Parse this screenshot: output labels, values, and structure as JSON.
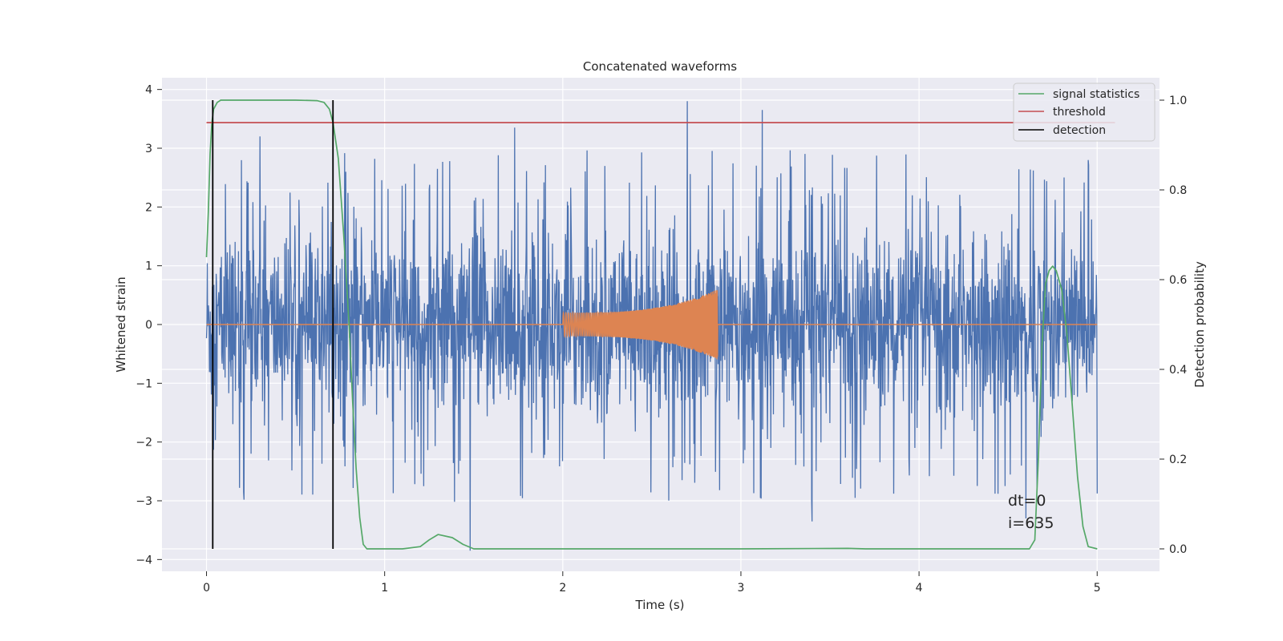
{
  "chart_data": {
    "type": "line",
    "title": "Concatenated waveforms",
    "xlabel": "Time (s)",
    "ylabel": "Whitened strain",
    "y2label": "Detection probability",
    "xlim": [
      -0.25,
      5.35
    ],
    "ylim": [
      -4.2,
      4.2
    ],
    "y2lim": [
      -0.05,
      1.05
    ],
    "xticks": [
      0,
      1,
      2,
      3,
      4,
      5
    ],
    "yticks": [
      -4,
      -3,
      -2,
      -1,
      0,
      1,
      2,
      3,
      4
    ],
    "y2ticks": [
      0.0,
      0.2,
      0.4,
      0.6,
      0.8,
      1.0
    ],
    "xtick_labels": [
      "0",
      "1",
      "2",
      "3",
      "4",
      "5"
    ],
    "ytick_labels": [
      "−4",
      "−3",
      "−2",
      "−1",
      "0",
      "1",
      "2",
      "3",
      "4"
    ],
    "y2tick_labels": [
      "0.0",
      "0.2",
      "0.4",
      "0.6",
      "0.8",
      "1.0"
    ],
    "grid": true,
    "legend_position": "top-right",
    "legend": [
      {
        "label": "signal statistics",
        "color": "#55a868"
      },
      {
        "label": "threshold",
        "color": "#c44e52"
      },
      {
        "label": "detection",
        "color": "#000000"
      }
    ],
    "series": [
      {
        "kind": "noise",
        "color": "#4c72b0",
        "axis": "left",
        "x_range": [
          0,
          5
        ],
        "envelope": [
          -2.3,
          2.3
        ],
        "peaks": [
          {
            "x": 2.7,
            "y": 3.8
          },
          {
            "x": 3.12,
            "y": 3.65
          },
          {
            "x": 1.48,
            "y": -3.85
          },
          {
            "x": 3.4,
            "y": -3.35
          },
          {
            "x": 0.3,
            "y": 3.2
          },
          {
            "x": 1.73,
            "y": 3.35
          },
          {
            "x": 4.6,
            "y": -3.3
          },
          {
            "x": 4.95,
            "y": 2.8
          }
        ]
      },
      {
        "kind": "chirp",
        "color": "#dd8452",
        "axis": "left",
        "x_range": [
          2.0,
          2.87
        ],
        "amplitude_start": 0.2,
        "amplitude_end": 0.6
      },
      {
        "name": "signal statistics",
        "color": "#55a868",
        "axis": "right",
        "x": [
          0.0,
          0.01,
          0.02,
          0.03,
          0.04,
          0.06,
          0.08,
          0.12,
          0.3,
          0.5,
          0.62,
          0.66,
          0.69,
          0.71,
          0.74,
          0.77,
          0.8,
          0.82,
          0.84,
          0.86,
          0.88,
          0.9,
          0.95,
          1.1,
          1.2,
          1.25,
          1.3,
          1.38,
          1.44,
          1.5,
          2.0,
          3.0,
          3.6,
          3.7,
          4.0,
          4.5,
          4.62,
          4.65,
          4.67,
          4.69,
          4.71,
          4.73,
          4.75,
          4.77,
          4.8,
          4.83,
          4.86,
          4.89,
          4.92,
          4.95,
          5.0
        ],
        "y": [
          0.65,
          0.75,
          0.88,
          0.95,
          0.98,
          0.995,
          1.0,
          1.0,
          1.0,
          1.0,
          0.999,
          0.995,
          0.98,
          0.95,
          0.87,
          0.7,
          0.5,
          0.33,
          0.18,
          0.07,
          0.01,
          0.0,
          0.0,
          0.0,
          0.005,
          0.02,
          0.032,
          0.025,
          0.01,
          0.0,
          0.0,
          0.0,
          0.001,
          0.0,
          0.0,
          0.0,
          0.0,
          0.02,
          0.2,
          0.45,
          0.59,
          0.62,
          0.63,
          0.62,
          0.58,
          0.48,
          0.32,
          0.16,
          0.05,
          0.005,
          0.0
        ]
      },
      {
        "name": "threshold",
        "color": "#c44e52",
        "axis": "right",
        "x": [
          0,
          5.1
        ],
        "y": [
          0.95,
          0.95
        ]
      },
      {
        "name": "detection",
        "color": "#000000",
        "axis": "right",
        "kind": "vlines",
        "x": [
          0.035,
          0.71
        ],
        "y_range": [
          0.0,
          1.0
        ]
      }
    ],
    "annotations": [
      "dt=0",
      "i=635"
    ]
  }
}
